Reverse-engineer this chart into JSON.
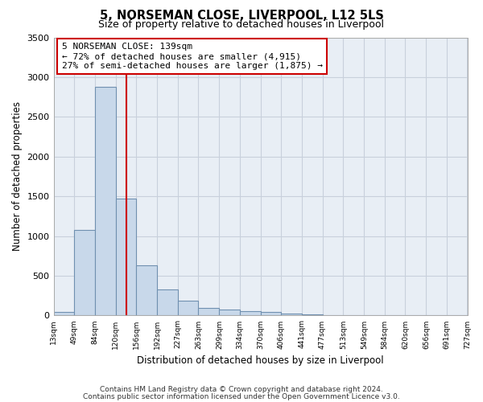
{
  "title": "5, NORSEMAN CLOSE, LIVERPOOL, L12 5LS",
  "subtitle": "Size of property relative to detached houses in Liverpool",
  "xlabel": "Distribution of detached houses by size in Liverpool",
  "ylabel": "Number of detached properties",
  "bar_color": "#c8d8ea",
  "bar_edge_color": "#7090b0",
  "grid_color": "#c8d0dc",
  "background_color": "#e8eef5",
  "vline_x": 139,
  "vline_color": "#cc0000",
  "annotation_text": "5 NORSEMAN CLOSE: 139sqm\n← 72% of detached houses are smaller (4,915)\n27% of semi-detached houses are larger (1,875) →",
  "annotation_box_color": "#ffffff",
  "annotation_box_edge": "#cc0000",
  "bin_edges": [
    13,
    49,
    84,
    120,
    156,
    192,
    227,
    263,
    299,
    334,
    370,
    406,
    441,
    477,
    513,
    549,
    584,
    620,
    656,
    691,
    727
  ],
  "bin_counts": [
    40,
    1080,
    2880,
    1470,
    630,
    330,
    185,
    100,
    80,
    60,
    40,
    25,
    15,
    0,
    0,
    0,
    0,
    0,
    0,
    0
  ],
  "ylim": [
    0,
    3500
  ],
  "yticks": [
    0,
    500,
    1000,
    1500,
    2000,
    2500,
    3000,
    3500
  ],
  "footer_line1": "Contains HM Land Registry data © Crown copyright and database right 2024.",
  "footer_line2": "Contains public sector information licensed under the Open Government Licence v3.0."
}
